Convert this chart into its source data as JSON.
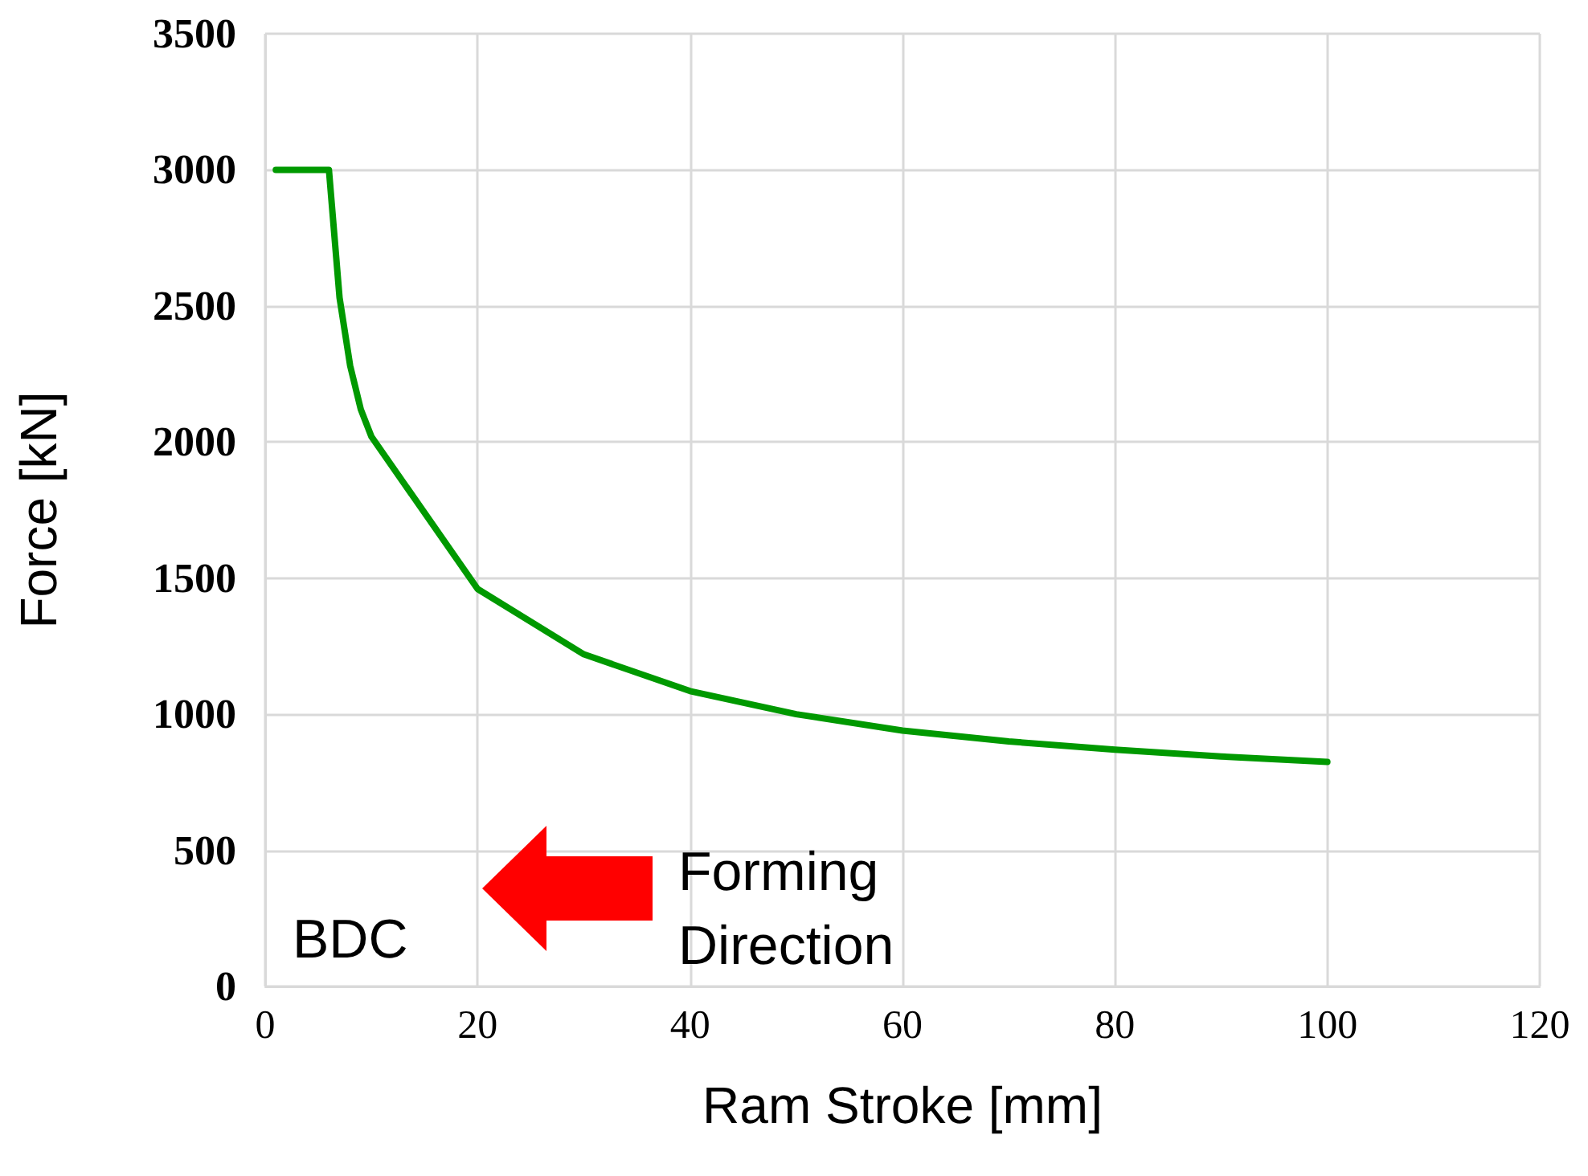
{
  "chart_data": {
    "type": "line",
    "xlabel": "Ram Stroke [mm]",
    "ylabel": "Force [kN]",
    "x": [
      1,
      6,
      7,
      8,
      9,
      10,
      20,
      30,
      40,
      50,
      60,
      70,
      80,
      90,
      100
    ],
    "series": [
      {
        "color": "#009900",
        "values": [
          3000,
          3000,
          2530,
          2280,
          2120,
          2020,
          1460,
          1220,
          1085,
          1000,
          940,
          900,
          870,
          845,
          825
        ]
      }
    ],
    "xlim": [
      0,
      120
    ],
    "xticks": [
      0,
      20,
      40,
      60,
      80,
      100,
      120
    ],
    "ylim": [
      0,
      3500
    ],
    "yticks": [
      0,
      500,
      1000,
      1500,
      2000,
      2500,
      3000,
      3500
    ],
    "grid": true,
    "marker": "none",
    "line_style": "solid",
    "annotations": [
      "BDC",
      "Forming Direction"
    ]
  }
}
